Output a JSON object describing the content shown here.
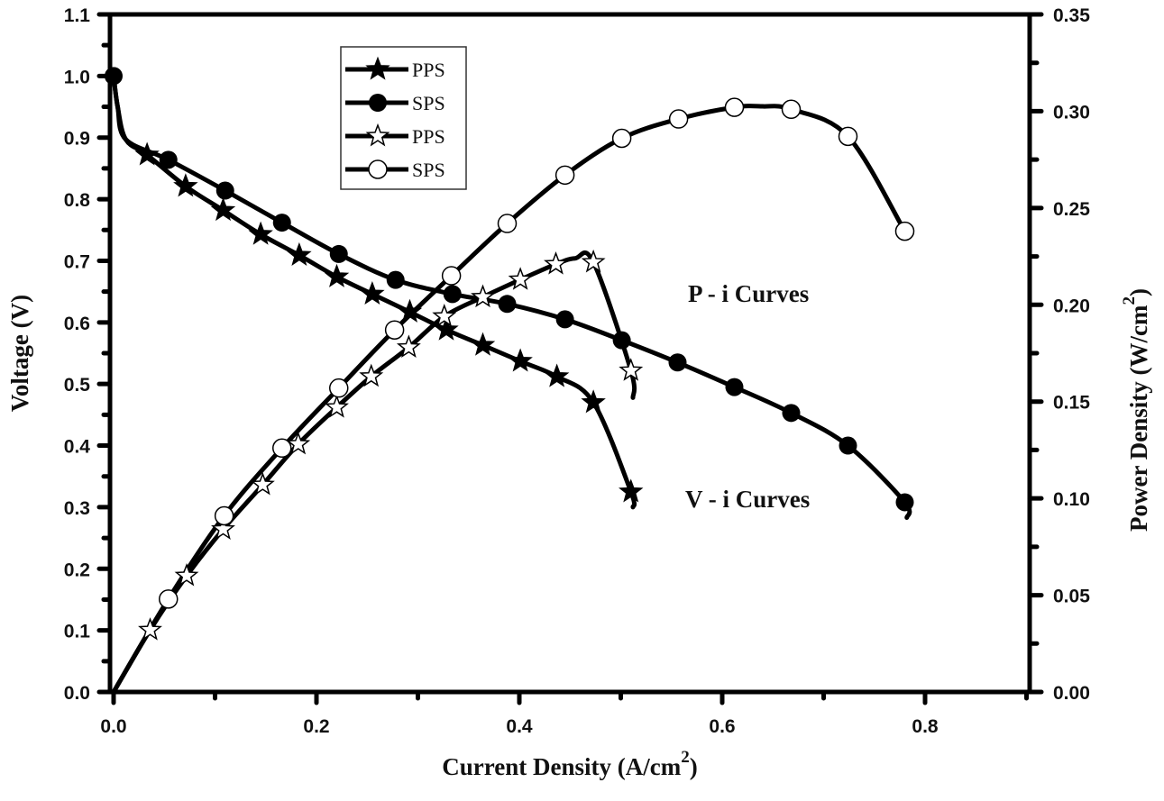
{
  "chart_data": {
    "type": "line",
    "title": "",
    "xlabel": "Current Density (A/cm",
    "xlabel_sup": "2",
    "xlabel_end": ")",
    "ylabel": "Voltage (V)",
    "y2label": "Power Density (W/cm",
    "y2label_sup": "2",
    "y2label_end": ")",
    "xlim": [
      0,
      0.9
    ],
    "ylim": [
      0,
      1.1
    ],
    "y2lim": [
      0,
      0.35
    ],
    "xticks": [
      "0.0",
      "0.2",
      "0.4",
      "0.6",
      "0.8"
    ],
    "xtick_values": [
      0,
      0.2,
      0.4,
      0.6,
      0.8
    ],
    "yticks": [
      "0.0",
      "0.1",
      "0.2",
      "0.3",
      "0.4",
      "0.5",
      "0.6",
      "0.7",
      "0.8",
      "0.9",
      "1.0",
      "1.1"
    ],
    "ytick_values": [
      0,
      0.1,
      0.2,
      0.3,
      0.4,
      0.5,
      0.6,
      0.7,
      0.8,
      0.9,
      1.0,
      1.1
    ],
    "y2ticks": [
      "0.00",
      "0.05",
      "0.10",
      "0.15",
      "0.20",
      "0.25",
      "0.30",
      "0.35"
    ],
    "y2tick_values": [
      0,
      0.05,
      0.1,
      0.15,
      0.2,
      0.25,
      0.3,
      0.35
    ],
    "grid": false,
    "legend_position": "top-left",
    "annotations": [
      "P - i Curves",
      "V - i Curves"
    ],
    "series": [
      {
        "name": "PPS",
        "curve": "V-i",
        "axis": "left",
        "marker": "filled-star",
        "x": [
          0.0,
          0.033,
          0.071,
          0.108,
          0.145,
          0.183,
          0.22,
          0.255,
          0.292,
          0.328,
          0.364,
          0.401,
          0.437,
          0.473,
          0.51
        ],
        "y": [
          1.0,
          0.872,
          0.821,
          0.782,
          0.743,
          0.709,
          0.674,
          0.646,
          0.617,
          0.588,
          0.563,
          0.537,
          0.512,
          0.47,
          0.325
        ]
      },
      {
        "name": "SPS",
        "curve": "V-i",
        "axis": "left",
        "marker": "filled-circle",
        "x": [
          0.0,
          0.054,
          0.11,
          0.166,
          0.222,
          0.278,
          0.334,
          0.388,
          0.445,
          0.501,
          0.556,
          0.612,
          0.668,
          0.724,
          0.78
        ],
        "y": [
          1.0,
          0.864,
          0.814,
          0.762,
          0.711,
          0.669,
          0.646,
          0.63,
          0.605,
          0.571,
          0.535,
          0.495,
          0.453,
          0.4,
          0.308
        ]
      },
      {
        "name": "PPS",
        "curve": "P-i",
        "axis": "right",
        "marker": "open-star",
        "x": [
          0.0,
          0.036,
          0.072,
          0.108,
          0.147,
          0.182,
          0.22,
          0.254,
          0.291,
          0.326,
          0.364,
          0.401,
          0.436,
          0.473,
          0.51
        ],
        "y": [
          0.0,
          0.032,
          0.06,
          0.084,
          0.107,
          0.128,
          0.147,
          0.163,
          0.178,
          0.194,
          0.204,
          0.213,
          0.221,
          0.222,
          0.166
        ]
      },
      {
        "name": "SPS",
        "curve": "P-i",
        "axis": "right",
        "marker": "open-circle",
        "x": [
          0.0,
          0.054,
          0.109,
          0.166,
          0.222,
          0.277,
          0.333,
          0.388,
          0.445,
          0.501,
          0.557,
          0.612,
          0.668,
          0.724,
          0.78
        ],
        "y": [
          0.0,
          0.048,
          0.091,
          0.126,
          0.157,
          0.187,
          0.215,
          0.242,
          0.267,
          0.286,
          0.296,
          0.302,
          0.301,
          0.287,
          0.238
        ]
      }
    ],
    "legend": [
      {
        "label": "PPS",
        "marker": "filled-star"
      },
      {
        "label": "SPS",
        "marker": "filled-circle"
      },
      {
        "label": "PPS",
        "marker": "open-star"
      },
      {
        "label": "SPS",
        "marker": "open-circle"
      }
    ]
  }
}
